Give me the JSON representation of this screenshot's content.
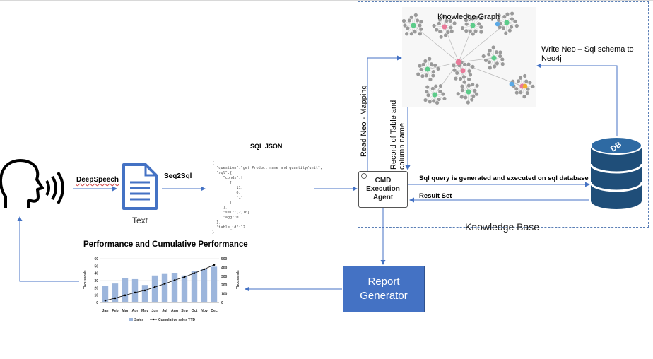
{
  "labels": {
    "deepspeech": "DeepSpeech",
    "seq2sql": "Seq2Sql",
    "text_caption": "Text",
    "sql_json_title": "SQL JSON",
    "knowledge_graph": "Knowledge Graph",
    "write_neo_line1": "Write Neo – Sql schema to",
    "write_neo_line2": "Neo4j",
    "read_neo": "Read Neo - Mapping",
    "record_line1": "Record of Table and",
    "record_line2": "column name.",
    "sql_query": "Sql query is generated and executed on sql database",
    "result_set": "Result Set",
    "knowledge_base": "Knowledge Base",
    "db_label": "DB"
  },
  "agent": {
    "line1": "CMD",
    "line2": "Execution",
    "line3": "Agent"
  },
  "report": {
    "line1": "Report",
    "line2": "Generator"
  },
  "sql_json_lines": [
    "{",
    "  \"question\":\"get Product name and quantity/unit\",",
    "  \"sql\":{",
    "     \"conds\":[",
    "        [",
    "           11,",
    "           0,",
    "           \"1\"",
    "        ]",
    "     ],",
    "     \"sel\":[2,10]",
    "     \"agg\":0",
    "  },",
    "  \"table_id\":12",
    "}"
  ],
  "colors": {
    "arrow": "#4472c4",
    "report_fill": "#4472c4",
    "db_fill": "#1f4e79",
    "bar": "#9db6dc",
    "kg_green": "#5ccc8a",
    "kg_pink": "#e97a9a",
    "kg_gray": "#9a9a9a"
  },
  "chart_data": {
    "type": "bar",
    "title": "Performance and Cumulative Performance",
    "categories": [
      "Jan",
      "Feb",
      "Mar",
      "Apr",
      "May",
      "Jun",
      "Jul",
      "Aug",
      "Sep",
      "Oct",
      "Nov",
      "Dec"
    ],
    "series": [
      {
        "name": "Sales",
        "type": "bar",
        "axis": "left",
        "values": [
          23,
          26,
          33,
          32,
          24,
          37,
          39,
          40,
          37,
          43,
          46,
          49
        ]
      },
      {
        "name": "Cumulative sales YTD",
        "type": "line",
        "axis": "right",
        "values": [
          23,
          49,
          82,
          114,
          138,
          175,
          214,
          254,
          291,
          334,
          380,
          429
        ]
      }
    ],
    "ylabel": "Thousands",
    "y2label": "Thousands",
    "ylim": [
      0,
      60
    ],
    "y2lim": [
      0,
      500
    ],
    "yticks": [
      "0",
      "10",
      "20",
      "30",
      "40",
      "50",
      "60"
    ],
    "y2ticks": [
      "0",
      "100",
      "200",
      "300",
      "400",
      "500"
    ],
    "grid": true,
    "legend": "bottom"
  }
}
